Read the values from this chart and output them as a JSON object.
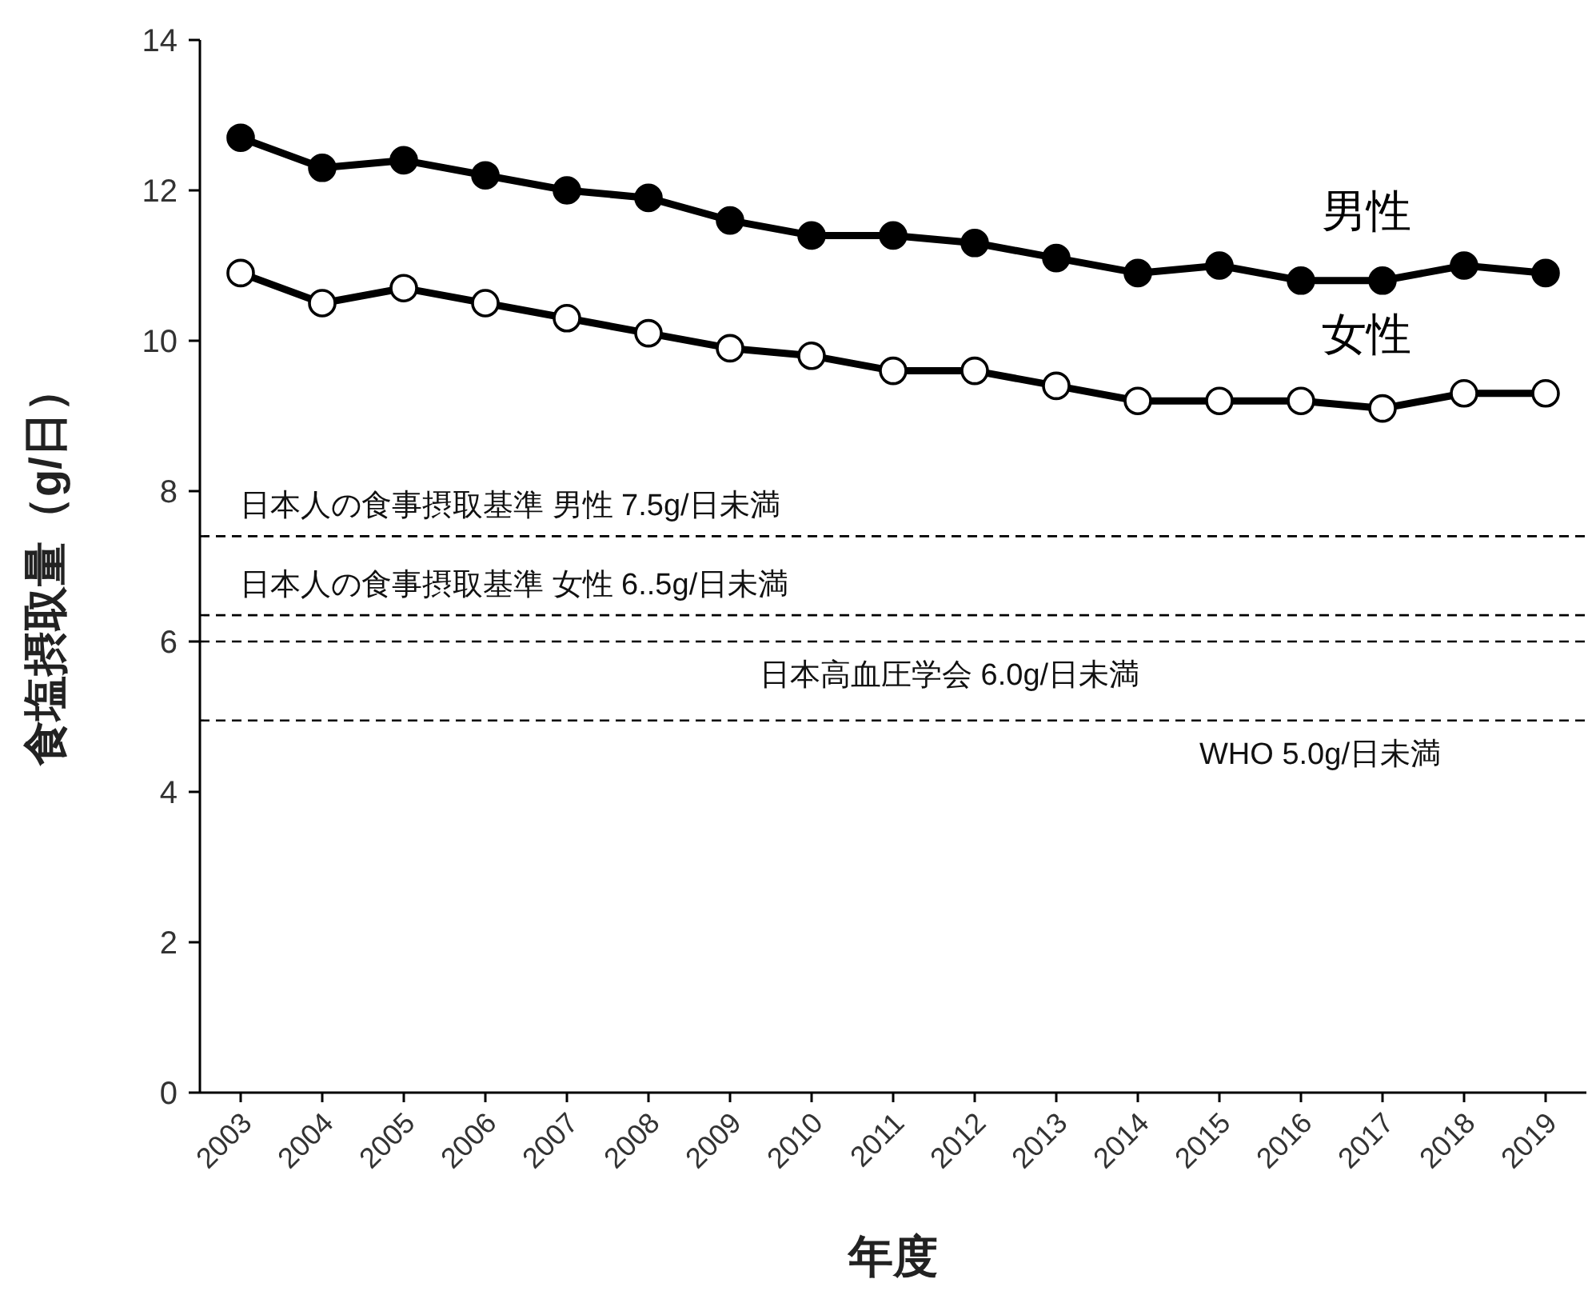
{
  "chart_data": {
    "type": "line",
    "xlabel": "年度",
    "ylabel": "食塩摂取量（g/日）",
    "categories": [
      "2003",
      "2004",
      "2005",
      "2006",
      "2007",
      "2008",
      "2009",
      "2010",
      "2011",
      "2012",
      "2013",
      "2014",
      "2015",
      "2016",
      "2017",
      "2018",
      "2019"
    ],
    "series": [
      {
        "name": "男性",
        "color": "#000000",
        "marker": "circle",
        "values": [
          12.7,
          12.3,
          12.4,
          12.2,
          12.0,
          11.9,
          11.6,
          11.4,
          11.4,
          11.3,
          11.1,
          10.9,
          11.0,
          10.8,
          10.8,
          11.0,
          10.9
        ]
      },
      {
        "name": "女性",
        "color": "#000000",
        "marker": "circle_open",
        "values": [
          10.9,
          10.5,
          10.7,
          10.5,
          10.3,
          10.1,
          9.9,
          9.8,
          9.6,
          9.6,
          9.4,
          9.2,
          9.2,
          9.2,
          9.1,
          9.3,
          9.3
        ]
      }
    ],
    "ylim": [
      0,
      14
    ],
    "yticks": [
      0,
      2,
      4,
      6,
      8,
      10,
      12,
      14
    ],
    "grid": false,
    "ref_lines": [
      {
        "axis": "y",
        "value": 7.4,
        "label": "日本人の食事摂取基準  男性 7.5g/日未満",
        "line_style": "dashed",
        "color": "#000000"
      },
      {
        "axis": "y",
        "value": 6.35,
        "label": "日本人の食事摂取基準  女性 6..5g/日未満",
        "line_style": "dashed",
        "color": "#000000"
      },
      {
        "axis": "y",
        "value": 6.0,
        "label": "日本高血圧学会 6.0g/日未満",
        "line_style": "dashed",
        "color": "#000000"
      },
      {
        "axis": "y",
        "value": 4.95,
        "label": "WHO 5.0g/日未満",
        "line_style": "dashed",
        "color": "#000000"
      }
    ]
  }
}
